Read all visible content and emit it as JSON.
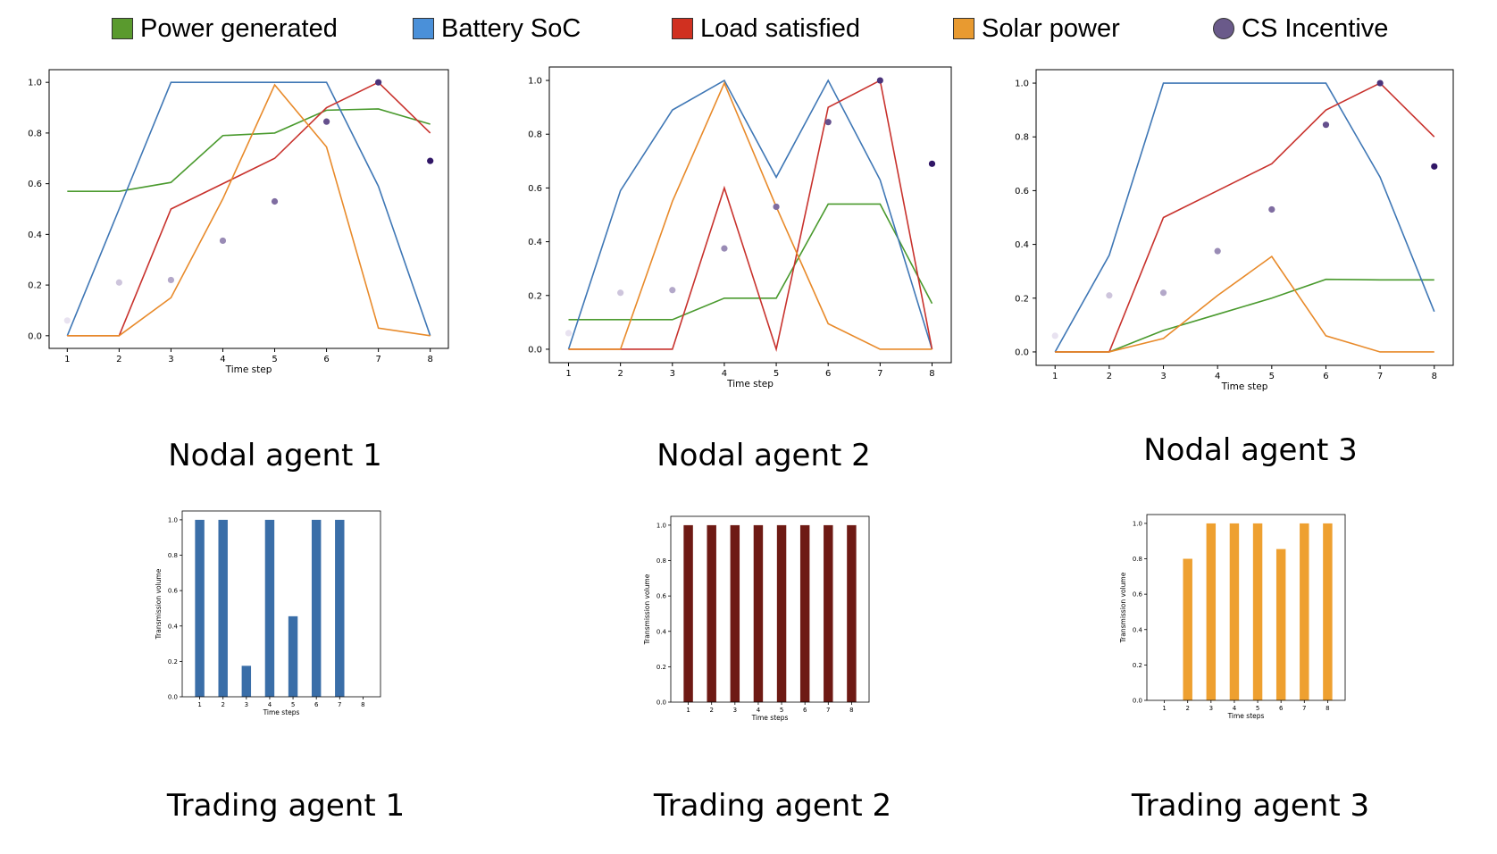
{
  "legend": {
    "items": [
      {
        "label": "Power generated",
        "color": "#5a9a2e",
        "shape": "square"
      },
      {
        "label": "Battery SoC",
        "color": "#4a90d9",
        "shape": "square"
      },
      {
        "label": "Load satisfied",
        "color": "#d03020",
        "shape": "square"
      },
      {
        "label": "Solar power",
        "color": "#e89a30",
        "shape": "square"
      },
      {
        "label": "CS Incentive",
        "color": "#6a5a8a",
        "shape": "circle"
      }
    ]
  },
  "captions": {
    "nodal1": "Nodal agent 1",
    "nodal2": "Nodal agent 2",
    "nodal3": "Nodal agent 3",
    "trading1": "Trading agent 1",
    "trading2": "Trading agent 2",
    "trading3": "Trading agent 3"
  },
  "chart_data": [
    {
      "type": "line",
      "caption": "Nodal agent 1",
      "xlabel": "Time step",
      "ylabel": "",
      "x": [
        1,
        2,
        3,
        4,
        5,
        6,
        7,
        8
      ],
      "xlim": [
        0.65,
        8.35
      ],
      "ylim": [
        -0.05,
        1.05
      ],
      "yticks": [
        0.0,
        0.2,
        0.4,
        0.6,
        0.8,
        1.0
      ],
      "series": [
        {
          "name": "Power generated",
          "color": "#4a9a2e",
          "values": [
            0.57,
            0.57,
            0.605,
            0.79,
            0.8,
            0.89,
            0.895,
            0.835
          ]
        },
        {
          "name": "Battery SoC",
          "color": "#3f77b5",
          "values": [
            0.0,
            0.5,
            1.0,
            1.0,
            1.0,
            1.0,
            0.59,
            0.0
          ]
        },
        {
          "name": "Load satisfied",
          "color": "#c8322d",
          "values": [
            0.0,
            0.0,
            0.5,
            0.6,
            0.7,
            0.9,
            1.0,
            0.8
          ]
        },
        {
          "name": "Solar power",
          "color": "#e88a2a",
          "values": [
            0.0,
            0.0,
            0.15,
            0.54,
            0.99,
            0.745,
            0.03,
            0.0
          ]
        }
      ],
      "incentive": {
        "name": "CS Incentive",
        "values": [
          0.06,
          0.21,
          0.22,
          0.375,
          0.53,
          0.845,
          1.0,
          0.69
        ]
      }
    },
    {
      "type": "line",
      "caption": "Nodal agent 2",
      "xlabel": "Time step",
      "ylabel": "",
      "x": [
        1,
        2,
        3,
        4,
        5,
        6,
        7,
        8
      ],
      "xlim": [
        0.63,
        8.37
      ],
      "ylim": [
        -0.05,
        1.05
      ],
      "yticks": [
        0.0,
        0.2,
        0.4,
        0.6,
        0.8,
        1.0
      ],
      "series": [
        {
          "name": "Power generated",
          "color": "#4a9a2e",
          "values": [
            0.11,
            0.11,
            0.11,
            0.19,
            0.19,
            0.54,
            0.54,
            0.17
          ]
        },
        {
          "name": "Battery SoC",
          "color": "#3f77b5",
          "values": [
            0.0,
            0.59,
            0.89,
            1.0,
            0.64,
            1.0,
            0.63,
            0.0
          ]
        },
        {
          "name": "Load satisfied",
          "color": "#c8322d",
          "values": [
            0.0,
            0.0,
            0.0,
            0.6,
            0.0,
            0.9,
            1.0,
            0.0
          ]
        },
        {
          "name": "Solar power",
          "color": "#e88a2a",
          "values": [
            0.0,
            0.0,
            0.55,
            0.99,
            0.53,
            0.095,
            0.0,
            0.0
          ]
        }
      ],
      "incentive": {
        "name": "CS Incentive",
        "values": [
          0.06,
          0.21,
          0.22,
          0.375,
          0.53,
          0.845,
          1.0,
          0.69
        ]
      }
    },
    {
      "type": "line",
      "caption": "Nodal agent 3",
      "xlabel": "Time step",
      "ylabel": "",
      "x": [
        1,
        2,
        3,
        4,
        5,
        6,
        7,
        8
      ],
      "xlim": [
        0.65,
        8.35
      ],
      "ylim": [
        -0.05,
        1.05
      ],
      "yticks": [
        0.0,
        0.2,
        0.4,
        0.6,
        0.8,
        1.0
      ],
      "series": [
        {
          "name": "Power generated",
          "color": "#4a9a2e",
          "values": [
            0.0,
            0.0,
            0.08,
            0.14,
            0.2,
            0.27,
            0.268,
            0.268
          ]
        },
        {
          "name": "Battery SoC",
          "color": "#3f77b5",
          "values": [
            0.0,
            0.36,
            1.0,
            1.0,
            1.0,
            1.0,
            0.65,
            0.15
          ]
        },
        {
          "name": "Load satisfied",
          "color": "#c8322d",
          "values": [
            0.0,
            0.0,
            0.5,
            0.6,
            0.7,
            0.9,
            1.0,
            0.8
          ]
        },
        {
          "name": "Solar power",
          "color": "#e88a2a",
          "values": [
            0.0,
            0.0,
            0.05,
            0.21,
            0.355,
            0.06,
            0.0,
            0.0
          ]
        }
      ],
      "incentive": {
        "name": "CS Incentive",
        "values": [
          0.06,
          0.21,
          0.22,
          0.375,
          0.53,
          0.845,
          1.0,
          0.69
        ]
      }
    },
    {
      "type": "bar",
      "caption": "Trading agent 1",
      "xlabel": "Time steps",
      "ylabel": "Transmission volume",
      "color": "#3a6ea8",
      "categories": [
        "1",
        "2",
        "3",
        "4",
        "5",
        "6",
        "7",
        "8"
      ],
      "values": [
        1.0,
        1.0,
        0.175,
        1.0,
        0.455,
        1.0,
        1.0,
        0.0
      ],
      "ylim": [
        0,
        1.05
      ],
      "yticks": [
        0.0,
        0.2,
        0.4,
        0.6,
        0.8,
        1.0
      ]
    },
    {
      "type": "bar",
      "caption": "Trading agent 2",
      "xlabel": "Time steps",
      "ylabel": "Transmission volume",
      "color": "#6e1a14",
      "categories": [
        "1",
        "2",
        "3",
        "4",
        "5",
        "6",
        "7",
        "8"
      ],
      "values": [
        1.0,
        1.0,
        1.0,
        1.0,
        1.0,
        1.0,
        1.0,
        1.0
      ],
      "ylim": [
        0,
        1.05
      ],
      "yticks": [
        0.0,
        0.2,
        0.4,
        0.6,
        0.8,
        1.0
      ]
    },
    {
      "type": "bar",
      "caption": "Trading agent 3",
      "xlabel": "Time steps",
      "ylabel": "Transmission volume",
      "color": "#eea030",
      "categories": [
        "1",
        "2",
        "3",
        "4",
        "5",
        "6",
        "7",
        "8"
      ],
      "values": [
        0.0,
        0.8,
        1.0,
        1.0,
        1.0,
        0.855,
        1.0,
        1.0
      ],
      "ylim": [
        0,
        1.05
      ],
      "yticks": [
        0.0,
        0.2,
        0.4,
        0.6,
        0.8,
        1.0
      ]
    }
  ]
}
